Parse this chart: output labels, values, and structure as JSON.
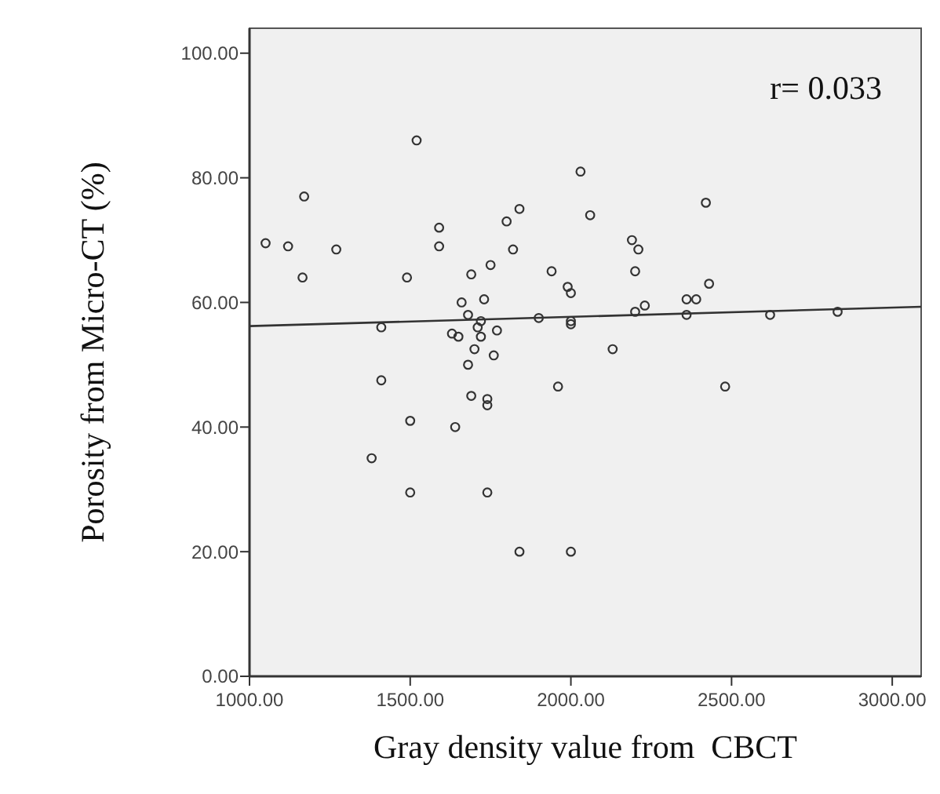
{
  "chart_data": {
    "type": "scatter",
    "xlabel": "Gray density value from  CBCT",
    "ylabel": "Porosity from Micro-CT (%)",
    "xlim": [
      1000,
      3090
    ],
    "ylim": [
      0,
      104
    ],
    "xticks": [
      {
        "value": 1000,
        "label": "1000.00"
      },
      {
        "value": 1500,
        "label": "1500.00"
      },
      {
        "value": 2000,
        "label": "2000.00"
      },
      {
        "value": 2500,
        "label": "2500.00"
      },
      {
        "value": 3000,
        "label": "3000.00"
      }
    ],
    "yticks": [
      {
        "value": 0,
        "label": "0.00"
      },
      {
        "value": 20,
        "label": "20.00"
      },
      {
        "value": 40,
        "label": "40.00"
      },
      {
        "value": 60,
        "label": "60.00"
      },
      {
        "value": 80,
        "label": "80.00"
      },
      {
        "value": 100,
        "label": "100.00"
      }
    ],
    "grid": false,
    "annotations": [
      "r= 0.033"
    ],
    "series": [
      {
        "marker": "circle",
        "color": "#333333",
        "x": [
          1050,
          1120,
          1170,
          1165,
          1270,
          1410,
          1410,
          1380,
          1490,
          1500,
          1500,
          1520,
          1590,
          1590,
          1630,
          1650,
          1640,
          1660,
          1680,
          1690,
          1680,
          1690,
          1700,
          1710,
          1720,
          1720,
          1730,
          1740,
          1740,
          1740,
          1750,
          1760,
          1770,
          1800,
          1820,
          1840,
          1840,
          1900,
          1940,
          1960,
          1990,
          2000,
          2000,
          2000,
          2000,
          2030,
          2060,
          2130,
          2190,
          2200,
          2210,
          2230,
          2200,
          2360,
          2360,
          2390,
          2420,
          2430,
          2480,
          2620,
          2830
        ],
        "values": [
          69.5,
          69,
          77,
          64,
          68.5,
          56,
          47.5,
          35,
          64,
          41,
          29.5,
          86,
          72,
          69,
          55,
          54.5,
          40,
          60,
          58,
          64.5,
          50,
          45,
          52.5,
          56,
          57,
          54.5,
          60.5,
          44.5,
          43.5,
          29.5,
          66,
          51.5,
          55.5,
          73,
          68.5,
          75,
          20,
          57.5,
          65,
          46.5,
          62.5,
          61.5,
          56.5,
          57,
          20,
          81,
          74,
          52.5,
          70,
          58.5,
          68.5,
          59.5,
          65,
          58,
          60.5,
          60.5,
          76,
          63,
          46.5,
          58,
          58.5
        ]
      },
      {
        "type": "line",
        "color": "#333333",
        "x": [
          1000,
          3090
        ],
        "values": [
          56.2,
          59.3
        ]
      }
    ]
  }
}
